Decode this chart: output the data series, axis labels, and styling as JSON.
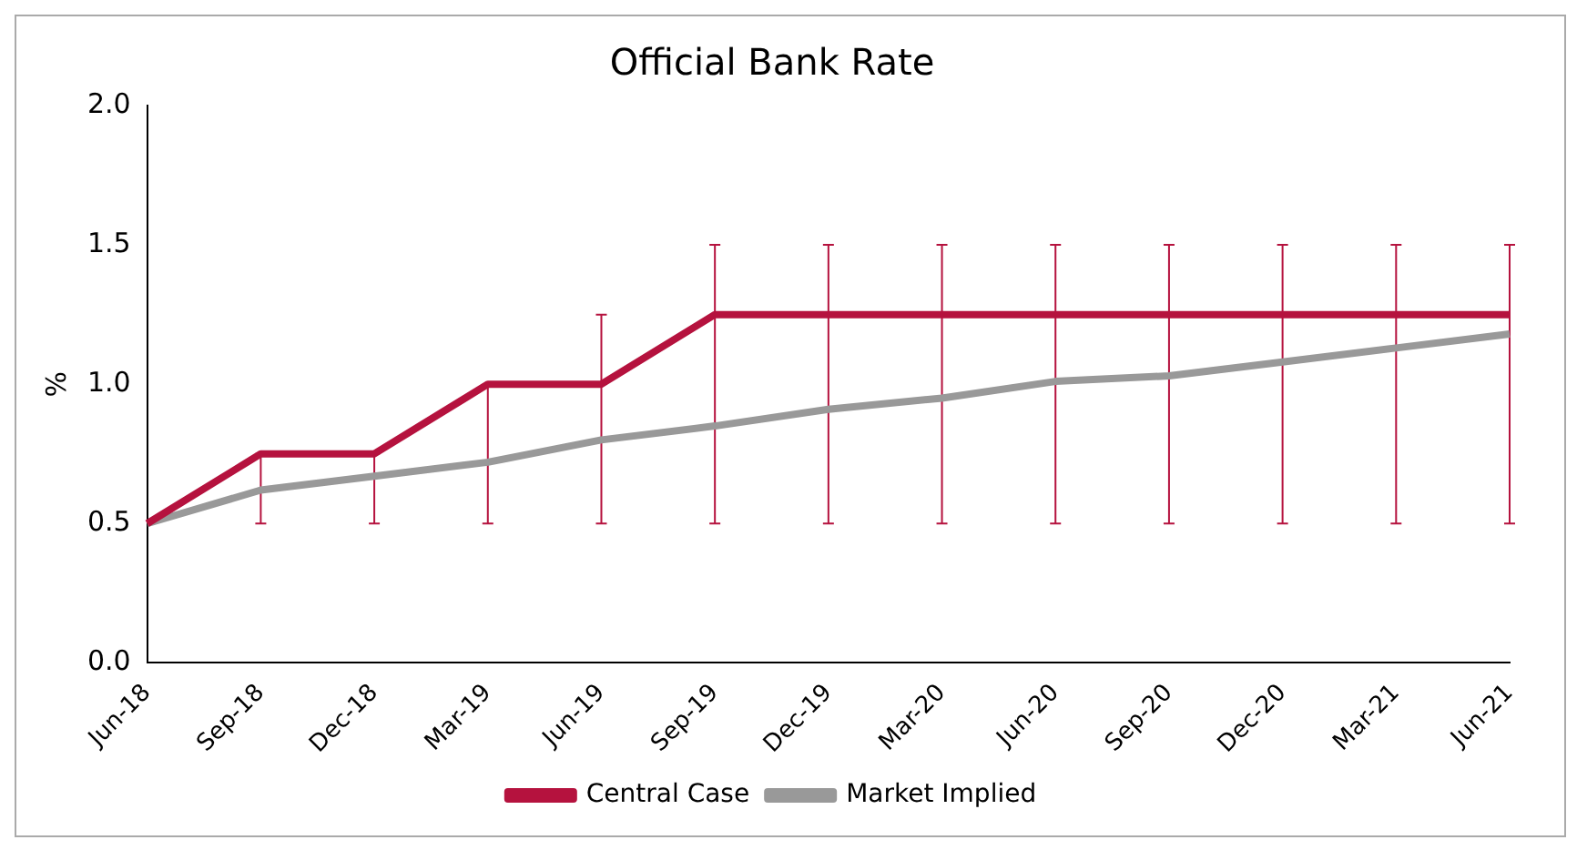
{
  "chart_data": {
    "type": "line",
    "title": "Official Bank Rate",
    "ylabel": "%",
    "categories": [
      "Jun-18",
      "Sep-18",
      "Dec-18",
      "Mar-19",
      "Jun-19",
      "Sep-19",
      "Dec-19",
      "Mar-20",
      "Jun-20",
      "Sep-20",
      "Dec-20",
      "Mar-21",
      "Jun-21"
    ],
    "series": [
      {
        "name": "Central Case",
        "color": "#b5123e",
        "values": [
          0.5,
          0.75,
          0.75,
          1.0,
          1.0,
          1.25,
          1.25,
          1.25,
          1.25,
          1.25,
          1.25,
          1.25,
          1.25
        ],
        "errors": [
          null,
          [
            0.5,
            0.75
          ],
          [
            0.5,
            0.75
          ],
          [
            0.5,
            1.0
          ],
          [
            0.5,
            1.25
          ],
          [
            0.5,
            1.5
          ],
          [
            0.5,
            1.5
          ],
          [
            0.5,
            1.5
          ],
          [
            0.5,
            1.5
          ],
          [
            0.5,
            1.5
          ],
          [
            0.5,
            1.5
          ],
          [
            0.5,
            1.5
          ],
          [
            0.5,
            1.5
          ]
        ]
      },
      {
        "name": "Market Implied",
        "color": "#999999",
        "values": [
          0.5,
          0.62,
          0.67,
          0.72,
          0.8,
          0.85,
          0.91,
          0.95,
          1.01,
          1.03,
          1.08,
          1.13,
          1.18
        ]
      }
    ],
    "ylim": [
      0,
      2
    ],
    "yticks": [
      {
        "value": 0,
        "label": "0.0"
      },
      0.5,
      {
        "value": 1,
        "label": "1.0"
      },
      1.5,
      {
        "value": 2,
        "label": "2.0"
      }
    ],
    "grid": false,
    "legend": "bottom",
    "marker": "none",
    "line_style": "solid"
  }
}
